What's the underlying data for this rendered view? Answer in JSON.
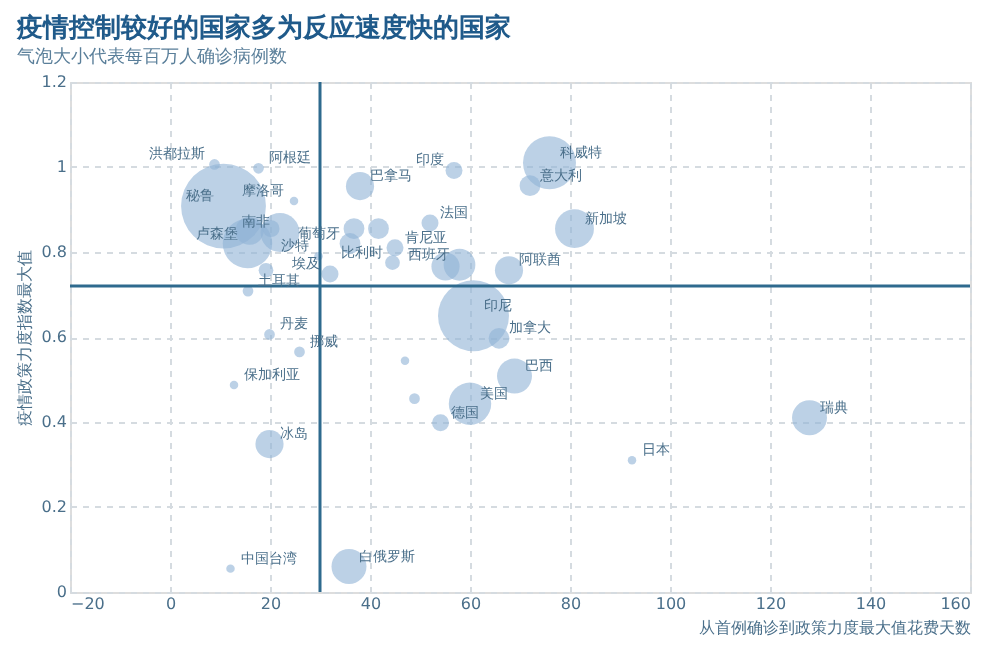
{
  "chart_data": {
    "type": "bubble",
    "title": "疫情控制较好的国家多为反应速度快的国家",
    "subtitle": "气泡大小代表每百万人确诊病例数",
    "xlabel": "从首例确诊到政策力度最大值花费天数",
    "ylabel": "疫情政策力度指数最大值",
    "xlim": [
      -20,
      160
    ],
    "xticks": [
      -20,
      0,
      20,
      40,
      60,
      80,
      100,
      120,
      140,
      160
    ],
    "ylim": [
      0,
      1.2
    ],
    "yticks": [
      0,
      0.2,
      0.4,
      0.6,
      0.8,
      1,
      1.2
    ],
    "grid": true,
    "marker": "circle",
    "series": [
      {
        "color": "#8fb3d5",
        "x": [
          10.7,
          15.5,
          8.9,
          17.7,
          24.8,
          22,
          29.7,
          15.6,
          19.9,
          25.9,
          12.8,
          19.9,
          12.1,
          35.8,
          54.1,
          60,
          68.9,
          127.9,
          92.4,
          65.8,
          60.7,
          56.8,
          75.9,
          38,
          72,
          52,
          80.9,
          45,
          57.9,
          67.8,
          44.5,
          32,
          36,
          19.2,
          15.9,
          20.2,
          48.9,
          47,
          36.8,
          41.7,
          55.1
        ],
        "values": [
          0.908,
          0.82,
          1.006,
          0.997,
          0.92,
          0.846,
          0.79,
          0.708,
          0.606,
          0.565,
          0.487,
          0.348,
          0.055,
          0.06,
          0.398,
          0.443,
          0.508,
          0.41,
          0.31,
          0.597,
          0.65,
          0.992,
          1.01,
          0.955,
          0.956,
          0.868,
          0.855,
          0.81,
          0.77,
          0.757,
          0.775,
          0.748,
          0.82,
          0.757,
          0.85,
          0.855,
          0.455,
          0.544,
          0.855,
          0.855,
          0.766
        ],
        "sizes": [
          1,
          0.34,
          0.016,
          0.016,
          0.01,
          0.21,
          0.01,
          0.016,
          0.016,
          0.016,
          0.01,
          0.11,
          0.01,
          0.17,
          0.04,
          0.25,
          0.17,
          0.17,
          0.01,
          0.06,
          0.7,
          0.04,
          0.39,
          0.11,
          0.06,
          0.04,
          0.21,
          0.04,
          0.14,
          0.11,
          0.03,
          0.04,
          0.06,
          0.03,
          0.11,
          0.04,
          0.016,
          0.01,
          0.06,
          0.06,
          0.11
        ]
      }
    ],
    "ref_lines": [
      {
        "axis": "x",
        "value": 30,
        "color": "#2e6a8e"
      },
      {
        "axis": "y",
        "value": 0.72,
        "color": "#2e6a8e"
      }
    ],
    "annotations": [
      {
        "text": "秘鲁",
        "x": 10.7,
        "y": 0.908
      },
      {
        "text": "卢森堡",
        "x": 15.5,
        "y": 0.82
      },
      {
        "text": "洪都拉斯",
        "x": 8.9,
        "y": 1.006
      },
      {
        "text": "阿根廷",
        "x": 17.7,
        "y": 0.997
      },
      {
        "text": "摩洛哥",
        "x": 24.8,
        "y": 0.92
      },
      {
        "text": "南非",
        "x": 22,
        "y": 0.846
      },
      {
        "text": "沙特",
        "x": 29.7,
        "y": 0.79
      },
      {
        "text": "土耳其",
        "x": 15.6,
        "y": 0.708
      },
      {
        "text": "丹麦",
        "x": 19.9,
        "y": 0.606
      },
      {
        "text": "挪威",
        "x": 25.9,
        "y": 0.565
      },
      {
        "text": "保加利亚",
        "x": 12.8,
        "y": 0.487
      },
      {
        "text": "冰岛",
        "x": 19.9,
        "y": 0.348
      },
      {
        "text": "中国台湾",
        "x": 12.1,
        "y": 0.055
      },
      {
        "text": "白俄罗斯",
        "x": 35.8,
        "y": 0.06
      },
      {
        "text": "德国",
        "x": 54.1,
        "y": 0.398
      },
      {
        "text": "美国",
        "x": 60,
        "y": 0.443
      },
      {
        "text": "巴西",
        "x": 68.9,
        "y": 0.508
      },
      {
        "text": "瑞典",
        "x": 127.9,
        "y": 0.41
      },
      {
        "text": "日本",
        "x": 92.4,
        "y": 0.31
      },
      {
        "text": "加拿大",
        "x": 65.8,
        "y": 0.597
      },
      {
        "text": "印尼",
        "x": 60.7,
        "y": 0.65
      },
      {
        "text": "印度",
        "x": 56.8,
        "y": 0.992
      },
      {
        "text": "科威特",
        "x": 75.9,
        "y": 1.01
      },
      {
        "text": "巴拿马",
        "x": 38,
        "y": 0.955
      },
      {
        "text": "意大利",
        "x": 72,
        "y": 0.956
      },
      {
        "text": "法国",
        "x": 52,
        "y": 0.868
      },
      {
        "text": "新加坡",
        "x": 80.9,
        "y": 0.855
      },
      {
        "text": "肯尼亚",
        "x": 45,
        "y": 0.81
      },
      {
        "text": "西班牙",
        "x": 57.9,
        "y": 0.77
      },
      {
        "text": "阿联酋",
        "x": 67.8,
        "y": 0.757
      },
      {
        "text": "比利时",
        "x": 44.5,
        "y": 0.775
      },
      {
        "text": "埃及",
        "x": 32,
        "y": 0.748
      },
      {
        "text": "葡萄牙",
        "x": 36,
        "y": 0.82
      }
    ]
  }
}
